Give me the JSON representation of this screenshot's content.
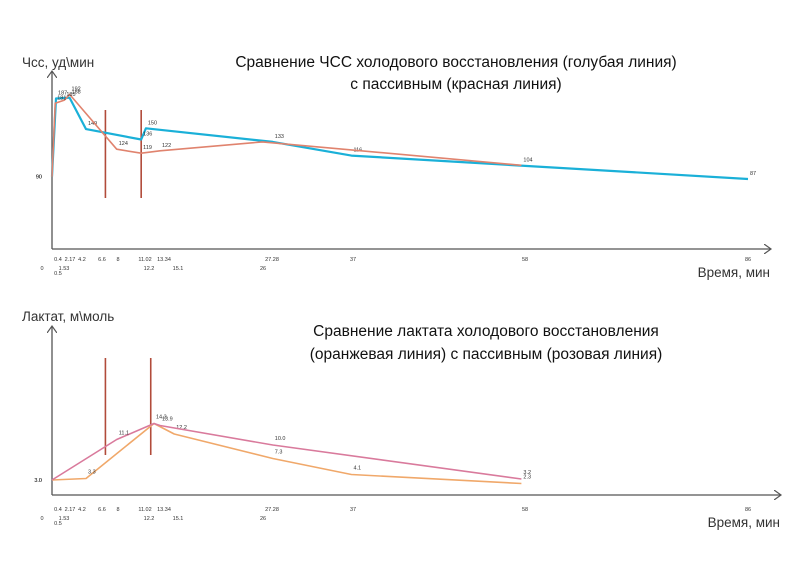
{
  "chart_data": [
    {
      "type": "line",
      "title": "Сравнение ЧСС холодового восстановления (голубая линия)",
      "subtitle": "с пассивным (красная линия)",
      "ylabel": "Чсс, уд\\мин",
      "xlabel": "Время, мин",
      "xlim": [
        0,
        86
      ],
      "ylim": [
        0,
        200
      ],
      "grid": false,
      "legend": "none",
      "x_ticks_top": [
        "0.4",
        "2.17",
        "4.2",
        "6.6",
        "8",
        "11.02",
        "13.34",
        "27.28",
        "37",
        "58",
        "86"
      ],
      "x_ticks_bottom": [
        "0",
        "1.53",
        "12.2",
        "15.1",
        "26"
      ],
      "x_ticks_bottom2": [
        "0.5"
      ],
      "markers": [
        6.6,
        11.02
      ],
      "series": [
        {
          "color": "#1ab0d8",
          "x": [
            0,
            0.5,
            2.17,
            4.2,
            11.02,
            11.6,
            27.28,
            37,
            86
          ],
          "values": [
            90,
            187,
            188,
            149,
            136,
            150,
            133,
            116,
            87
          ],
          "labels": [
            "90",
            "187",
            "188",
            "149",
            "136",
            "150",
            "133",
            "116",
            "87"
          ]
        },
        {
          "color": "#e0836e",
          "x": [
            0,
            0.4,
            1.53,
            2.17,
            8,
            11.02,
            13.34,
            26,
            58
          ],
          "values": [
            90,
            181,
            185,
            192,
            124,
            119,
            122,
            133,
            104
          ],
          "labels": [
            "90",
            "181",
            "185",
            "192",
            "124",
            "119",
            "122",
            "",
            "104"
          ]
        }
      ]
    },
    {
      "type": "line",
      "title": "Сравнение лактата холодового восстановления",
      "subtitle": "(оранжевая линия) с пассивным (розовая линия)",
      "ylabel": "Лактат, м\\моль",
      "xlabel": "Время, мин",
      "xlim": [
        0,
        86
      ],
      "ylim": [
        0,
        18
      ],
      "grid": false,
      "legend": "none",
      "x_ticks_top": [
        "0.4",
        "2.17",
        "4.2",
        "6.6",
        "8",
        "11.02",
        "13.34",
        "27.28",
        "37",
        "58",
        "86"
      ],
      "x_ticks_bottom": [
        "0",
        "1.53",
        "12.2",
        "15.1",
        "26"
      ],
      "x_ticks_bottom2": [
        "0.5"
      ],
      "markers": [
        6.6,
        12.2
      ],
      "series": [
        {
          "color": "#f0a86a",
          "x": [
            0,
            4.2,
            12.6,
            15.1,
            27.28,
            37,
            58
          ],
          "values": [
            3.0,
            3.3,
            14.3,
            12.2,
            7.3,
            4.1,
            2.3
          ],
          "labels": [
            "3.0",
            "3.3",
            "14.3",
            "12.2",
            "7.3",
            "4.1",
            "2.3"
          ]
        },
        {
          "color": "#d97a9c",
          "x": [
            0,
            8,
            12.6,
            13.34,
            27.28,
            58
          ],
          "values": [
            3.0,
            11.1,
            14.3,
            13.9,
            10.0,
            3.2
          ],
          "labels": [
            "3.0",
            "11.1",
            "",
            "13.9",
            "10.0",
            "3.2"
          ]
        }
      ]
    }
  ]
}
